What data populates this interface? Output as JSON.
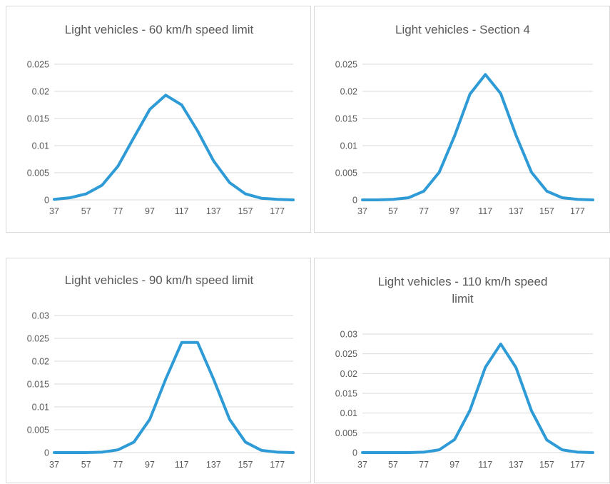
{
  "chart_data": [
    {
      "type": "line",
      "title": "Light vehicles - 60 km/h speed limit",
      "title_lines": [
        "Light vehicles - 60 km/h speed limit"
      ],
      "x_tick_labels": [
        "37",
        "57",
        "77",
        "97",
        "117",
        "137",
        "157",
        "177"
      ],
      "x": [
        37,
        47,
        57,
        67,
        77,
        87,
        97,
        107,
        117,
        127,
        137,
        147,
        157,
        167,
        177,
        187
      ],
      "y_ticks": [
        "0",
        "0.005",
        "0.01",
        "0.015",
        "0.02",
        "0.025"
      ],
      "ylim": [
        0,
        0.025
      ],
      "grid": true,
      "color": "#2e9bd6",
      "values": [
        0.0001,
        0.0004,
        0.0011,
        0.0027,
        0.0062,
        0.0115,
        0.0167,
        0.0193,
        0.0175,
        0.0127,
        0.0072,
        0.0032,
        0.0011,
        0.0003,
        0.0001,
        0.0
      ]
    },
    {
      "type": "line",
      "title": "Light vehicles - Section 4",
      "title_lines": [
        "Light vehicles - Section 4"
      ],
      "x_tick_labels": [
        "37",
        "57",
        "77",
        "97",
        "117",
        "137",
        "157",
        "177"
      ],
      "x": [
        37,
        47,
        57,
        67,
        77,
        87,
        97,
        107,
        117,
        127,
        137,
        147,
        157,
        167,
        177,
        187
      ],
      "y_ticks": [
        "0",
        "0.005",
        "0.01",
        "0.015",
        "0.02",
        "0.025"
      ],
      "ylim": [
        0,
        0.025
      ],
      "grid": true,
      "color": "#2e9bd6",
      "values": [
        0.0,
        0.0,
        0.0001,
        0.0004,
        0.0016,
        0.0051,
        0.0118,
        0.0195,
        0.0231,
        0.0196,
        0.0119,
        0.0051,
        0.0016,
        0.0004,
        0.0001,
        0.0
      ]
    },
    {
      "type": "line",
      "title": "Light vehicles - 90 km/h speed limit",
      "title_lines": [
        "Light vehicles - 90 km/h speed limit"
      ],
      "x_tick_labels": [
        "37",
        "57",
        "77",
        "97",
        "117",
        "137",
        "157",
        "177"
      ],
      "x": [
        37,
        47,
        57,
        67,
        77,
        87,
        97,
        107,
        117,
        127,
        137,
        147,
        157,
        167,
        177,
        187
      ],
      "y_ticks": [
        "0",
        "0.005",
        "0.01",
        "0.015",
        "0.02",
        "0.025",
        "0.03"
      ],
      "ylim": [
        0,
        0.03
      ],
      "grid": true,
      "color": "#2e9bd6",
      "values": [
        0.0,
        0.0,
        0.0,
        0.0001,
        0.0006,
        0.0023,
        0.0073,
        0.0161,
        0.0241,
        0.0241,
        0.0161,
        0.0073,
        0.0023,
        0.0005,
        0.0001,
        0.0
      ]
    },
    {
      "type": "line",
      "title": "Light vehicles - 110 km/h speed limit",
      "title_lines": [
        "Light vehicles - 110 km/h speed",
        "limit"
      ],
      "x_tick_labels": [
        "37",
        "57",
        "77",
        "97",
        "117",
        "137",
        "157",
        "177"
      ],
      "x": [
        37,
        47,
        57,
        67,
        77,
        87,
        97,
        107,
        117,
        127,
        137,
        147,
        157,
        167,
        177,
        187
      ],
      "y_ticks": [
        "0",
        "0.005",
        "0.01",
        "0.015",
        "0.02",
        "0.025",
        "0.03"
      ],
      "ylim": [
        0,
        0.03
      ],
      "grid": true,
      "color": "#2e9bd6",
      "values": [
        0.0,
        0.0,
        0.0,
        0.0,
        0.0001,
        0.0007,
        0.0033,
        0.0107,
        0.0216,
        0.0275,
        0.0215,
        0.0106,
        0.0032,
        0.0007,
        0.0001,
        0.0
      ]
    }
  ]
}
